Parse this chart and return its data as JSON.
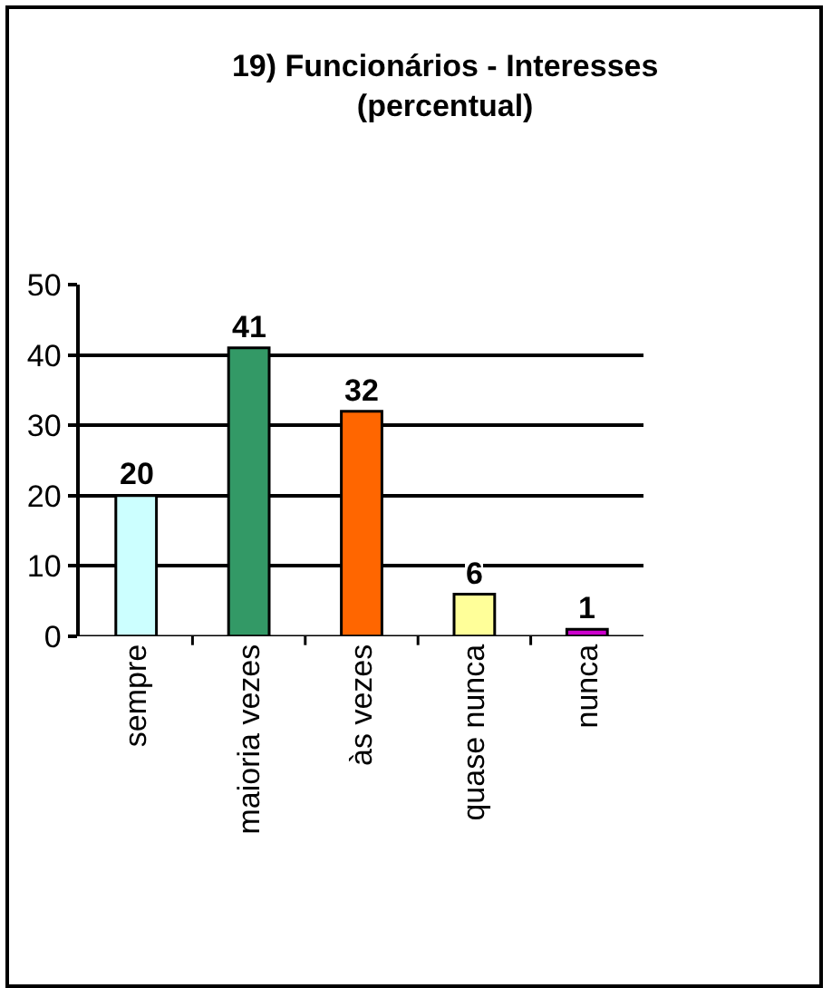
{
  "chart_data": {
    "type": "bar",
    "title": "19) Funcionários - Interesses (percentual)",
    "categories": [
      "sempre",
      "maioria vezes",
      "às vezes",
      "quase nunca",
      "nunca"
    ],
    "values": [
      20,
      41,
      32,
      6,
      1
    ],
    "colors": [
      "#ccffff",
      "#339966",
      "#ff6600",
      "#ffff99",
      "#cc00cc"
    ],
    "ylim": [
      0,
      50
    ],
    "yticks": [
      0,
      10,
      20,
      30,
      40,
      50
    ],
    "grid": "y",
    "data_labels": true,
    "legend": false
  }
}
